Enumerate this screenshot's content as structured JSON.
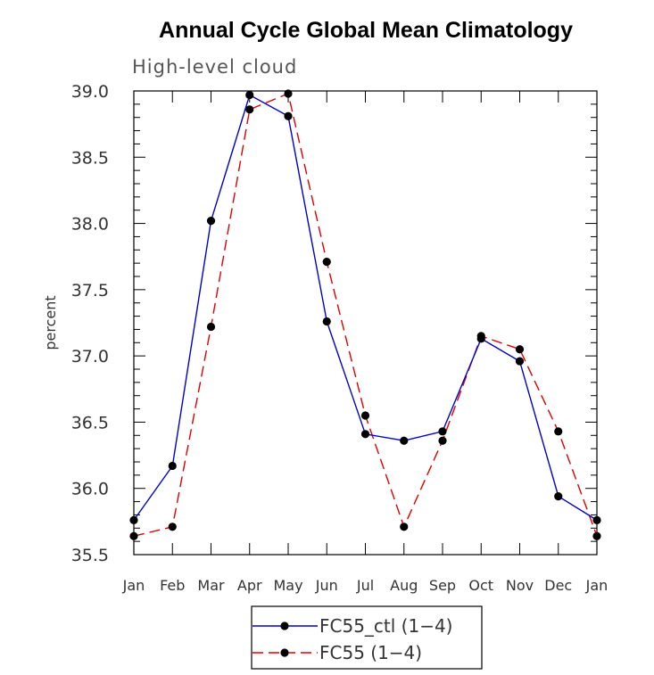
{
  "chart_data": {
    "type": "line",
    "title": "Annual Cycle Global Mean Climatology",
    "subtitle": "High-level cloud",
    "xlabel": "",
    "ylabel": "percent",
    "categories": [
      "Jan",
      "Feb",
      "Mar",
      "Apr",
      "May",
      "Jun",
      "Jul",
      "Aug",
      "Sep",
      "Oct",
      "Nov",
      "Dec",
      "Jan"
    ],
    "ylim": [
      35.5,
      39.0
    ],
    "yticks": [
      35.5,
      36.0,
      36.5,
      37.0,
      37.5,
      38.0,
      38.5,
      39.0
    ],
    "ytick_labels": [
      "35.5",
      "36.0",
      "36.5",
      "37.0",
      "37.5",
      "38.0",
      "38.5",
      "39.0"
    ],
    "grid": false,
    "legend_position": "bottom-center",
    "series": [
      {
        "name": "FC55_ctl (1−4)",
        "color": "#0000cc",
        "style": "solid",
        "values": [
          35.76,
          36.17,
          38.02,
          38.97,
          38.81,
          37.26,
          36.41,
          36.36,
          36.43,
          37.13,
          36.96,
          35.94,
          35.76
        ]
      },
      {
        "name": "FC55 (1−4)",
        "color": "#dd0000",
        "style": "dashed",
        "values": [
          35.64,
          35.71,
          37.22,
          38.86,
          38.98,
          37.71,
          36.55,
          35.71,
          36.36,
          37.15,
          37.05,
          36.43,
          35.64
        ]
      }
    ]
  }
}
